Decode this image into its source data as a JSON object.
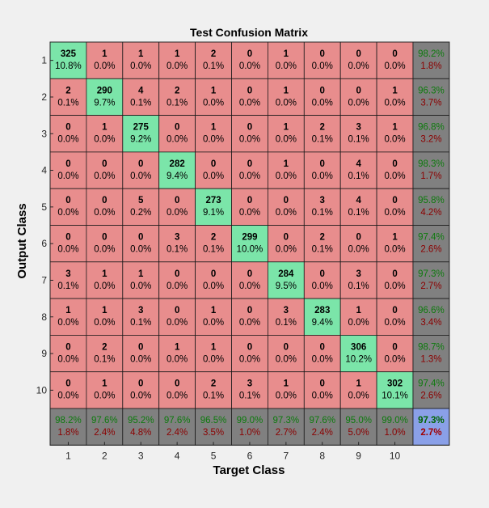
{
  "chart_data": {
    "type": "heatmap",
    "title": "Test Confusion Matrix",
    "xlabel": "Target Class",
    "ylabel": "Output Class",
    "x_tick_labels": [
      "1",
      "2",
      "3",
      "4",
      "5",
      "6",
      "7",
      "8",
      "9",
      "10"
    ],
    "y_tick_labels": [
      "1",
      "2",
      "3",
      "4",
      "5",
      "6",
      "7",
      "8",
      "9",
      "10"
    ],
    "counts": [
      [
        325,
        1,
        1,
        1,
        2,
        0,
        1,
        0,
        0,
        0
      ],
      [
        2,
        290,
        4,
        2,
        1,
        0,
        1,
        0,
        0,
        1
      ],
      [
        0,
        1,
        275,
        0,
        1,
        0,
        1,
        2,
        3,
        1
      ],
      [
        0,
        0,
        0,
        282,
        0,
        0,
        1,
        0,
        4,
        0
      ],
      [
        0,
        0,
        5,
        0,
        273,
        0,
        0,
        3,
        4,
        0
      ],
      [
        0,
        0,
        0,
        3,
        2,
        299,
        0,
        2,
        0,
        1
      ],
      [
        3,
        1,
        1,
        0,
        0,
        0,
        284,
        0,
        3,
        0
      ],
      [
        1,
        1,
        3,
        0,
        1,
        0,
        3,
        283,
        1,
        0
      ],
      [
        0,
        2,
        0,
        1,
        1,
        0,
        0,
        0,
        306,
        0
      ],
      [
        0,
        1,
        0,
        0,
        2,
        3,
        1,
        0,
        1,
        302
      ]
    ],
    "cell_percents": [
      [
        "10.8%",
        "0.0%",
        "0.0%",
        "0.0%",
        "0.1%",
        "0.0%",
        "0.0%",
        "0.0%",
        "0.0%",
        "0.0%"
      ],
      [
        "0.1%",
        "9.7%",
        "0.1%",
        "0.1%",
        "0.0%",
        "0.0%",
        "0.0%",
        "0.0%",
        "0.0%",
        "0.0%"
      ],
      [
        "0.0%",
        "0.0%",
        "9.2%",
        "0.0%",
        "0.0%",
        "0.0%",
        "0.0%",
        "0.1%",
        "0.1%",
        "0.0%"
      ],
      [
        "0.0%",
        "0.0%",
        "0.0%",
        "9.4%",
        "0.0%",
        "0.0%",
        "0.0%",
        "0.0%",
        "0.1%",
        "0.0%"
      ],
      [
        "0.0%",
        "0.0%",
        "0.2%",
        "0.0%",
        "9.1%",
        "0.0%",
        "0.0%",
        "0.1%",
        "0.1%",
        "0.0%"
      ],
      [
        "0.0%",
        "0.0%",
        "0.0%",
        "0.1%",
        "0.1%",
        "10.0%",
        "0.0%",
        "0.1%",
        "0.0%",
        "0.0%"
      ],
      [
        "0.1%",
        "0.0%",
        "0.0%",
        "0.0%",
        "0.0%",
        "0.0%",
        "9.5%",
        "0.0%",
        "0.1%",
        "0.0%"
      ],
      [
        "0.0%",
        "0.0%",
        "0.1%",
        "0.0%",
        "0.0%",
        "0.0%",
        "0.1%",
        "9.4%",
        "0.0%",
        "0.0%"
      ],
      [
        "0.0%",
        "0.1%",
        "0.0%",
        "0.0%",
        "0.0%",
        "0.0%",
        "0.0%",
        "0.0%",
        "10.2%",
        "0.0%"
      ],
      [
        "0.0%",
        "0.0%",
        "0.0%",
        "0.0%",
        "0.1%",
        "0.1%",
        "0.0%",
        "0.0%",
        "0.0%",
        "10.1%"
      ]
    ],
    "row_summary": [
      [
        "98.2%",
        "1.8%"
      ],
      [
        "96.3%",
        "3.7%"
      ],
      [
        "96.8%",
        "3.2%"
      ],
      [
        "98.3%",
        "1.7%"
      ],
      [
        "95.8%",
        "4.2%"
      ],
      [
        "97.4%",
        "2.6%"
      ],
      [
        "97.3%",
        "2.7%"
      ],
      [
        "96.6%",
        "3.4%"
      ],
      [
        "98.7%",
        "1.3%"
      ],
      [
        "97.4%",
        "2.6%"
      ]
    ],
    "col_summary": [
      [
        "98.2%",
        "1.8%"
      ],
      [
        "97.6%",
        "2.4%"
      ],
      [
        "95.2%",
        "4.8%"
      ],
      [
        "97.6%",
        "2.4%"
      ],
      [
        "96.5%",
        "3.5%"
      ],
      [
        "99.0%",
        "1.0%"
      ],
      [
        "97.3%",
        "2.7%"
      ],
      [
        "97.6%",
        "2.4%"
      ],
      [
        "95.0%",
        "5.0%"
      ],
      [
        "99.0%",
        "1.0%"
      ]
    ],
    "overall": [
      "97.3%",
      "2.7%"
    ]
  },
  "colors": {
    "background": "#f0f0f0",
    "correct_cell": "#7be5a9",
    "wrong_cell": "#e88d8d",
    "summary_cell": "#808080",
    "overall_cell": "#8aa0e8",
    "accuracy_text": "#0d7a0d",
    "error_text": "#8b0000",
    "overall_accuracy_text": "#006400",
    "overall_error_text": "#a00000",
    "grid_line": "#1a1a1a",
    "axis_line": "#262626"
  }
}
